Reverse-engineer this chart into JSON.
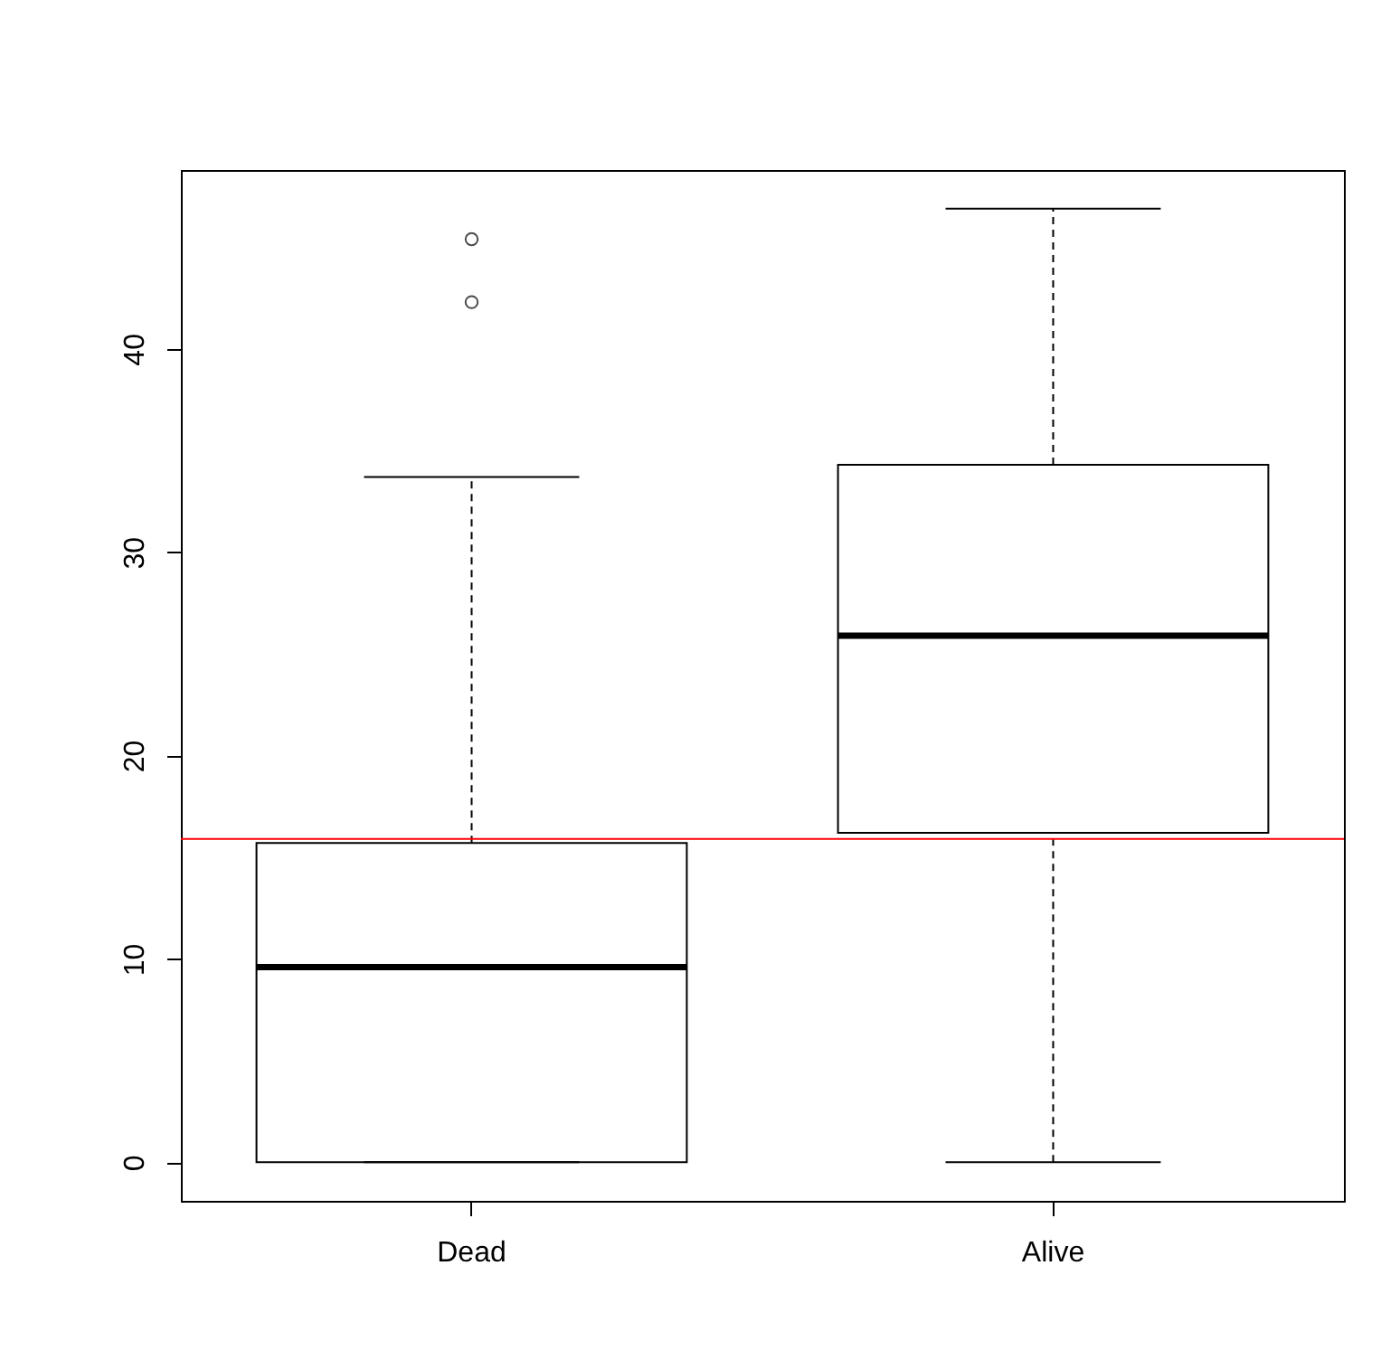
{
  "chart_data": {
    "type": "box",
    "categories": [
      "Dead",
      "Alive"
    ],
    "boxes": [
      {
        "low": 0,
        "q1": 0,
        "median": 9.6,
        "q3": 15.7,
        "high": 33.7,
        "outliers": [
          42.3,
          45.4
        ]
      },
      {
        "low": 0,
        "q1": 16.2,
        "median": 25.9,
        "q3": 34.3,
        "high": 46.9
      }
    ],
    "ylim": [
      -1.9,
      48.8
    ],
    "yticks": [
      0,
      10,
      20,
      30,
      40
    ],
    "grid": false,
    "ref_lines": [
      {
        "axis": "y",
        "value": 15.9,
        "color": "#ff0000"
      }
    ]
  }
}
